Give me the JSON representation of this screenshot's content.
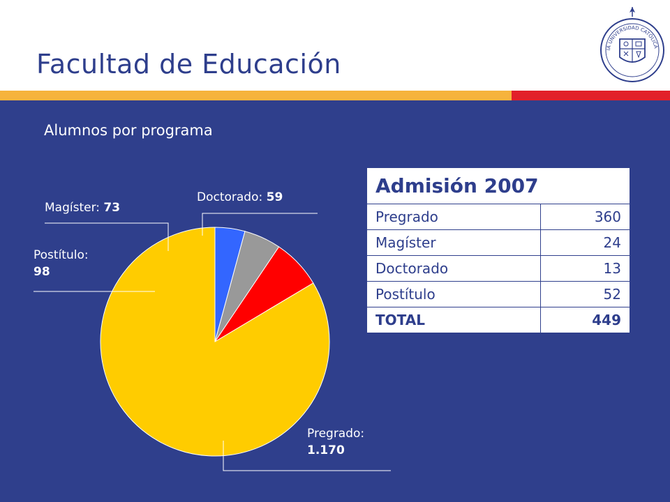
{
  "slide": {
    "title": "Facultad de Educación",
    "subtitle": "Alumnos por programa",
    "colors": {
      "background": "#2f3f8c",
      "title_text": "#2e3e8c",
      "accent_orange": "#f6b33c",
      "accent_red": "#e2202a"
    },
    "logo": {
      "icon": "university-seal-icon",
      "text": "PONTIFICIA UNIVERSIDAD CATÓLICA DE CHILE"
    }
  },
  "chart_data": {
    "type": "pie",
    "title": "",
    "categories": [
      "Pregrado",
      "Postítulo",
      "Magíster",
      "Doctorado"
    ],
    "values": [
      1170,
      98,
      73,
      59
    ],
    "value_labels": [
      "1.170",
      "98",
      "73",
      "59"
    ],
    "colors": [
      "#ffcc00",
      "#ff0000",
      "#999999",
      "#3366ff"
    ],
    "start_angle": "12 o'clock",
    "direction": "counter-clockwise",
    "labels_position": "outside with leader lines"
  },
  "table": {
    "title": "Admisión 2007",
    "rows": [
      {
        "label": "Pregrado",
        "value": "360"
      },
      {
        "label": "Magíster",
        "value": "24"
      },
      {
        "label": "Doctorado",
        "value": "13"
      },
      {
        "label": "Postítulo",
        "value": "52"
      }
    ],
    "total": {
      "label": "TOTAL",
      "value": "449"
    }
  }
}
